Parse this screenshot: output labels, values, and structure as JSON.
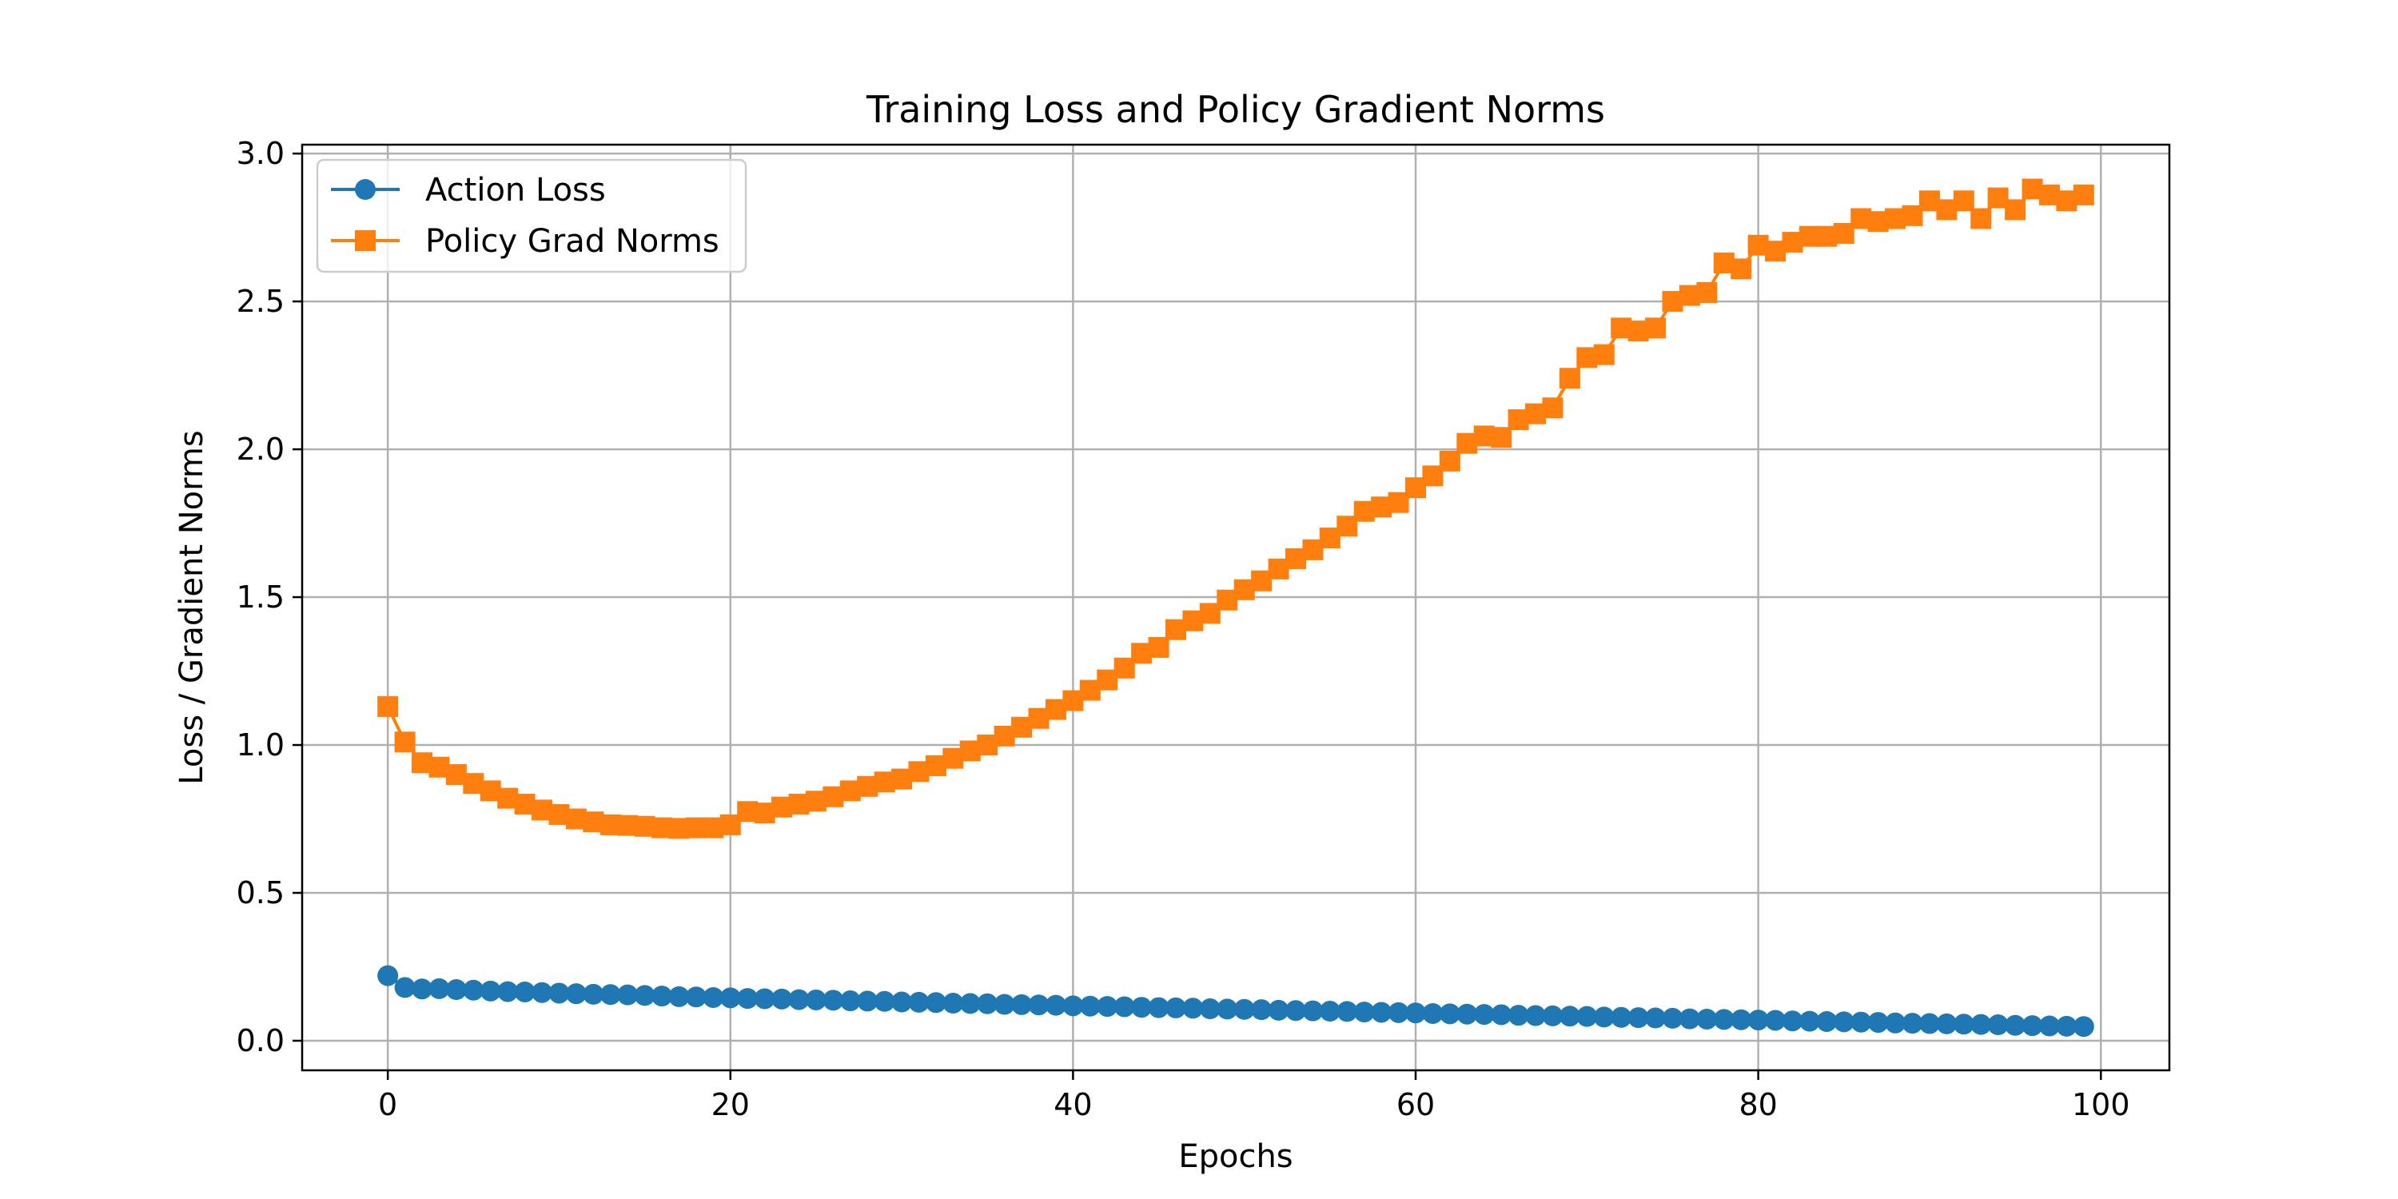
{
  "chart_data": {
    "type": "line",
    "title": "Training Loss and Policy Gradient Norms",
    "xlabel": "Epochs",
    "ylabel": "Loss / Gradient Norms",
    "xlim": [
      -5,
      104
    ],
    "ylim": [
      -0.1,
      3.03
    ],
    "xticks": [
      0,
      20,
      40,
      60,
      80,
      100
    ],
    "yticks": [
      0.0,
      0.5,
      1.0,
      1.5,
      2.0,
      2.5,
      3.0
    ],
    "xtick_labels": [
      "0",
      "20",
      "40",
      "60",
      "80",
      "100"
    ],
    "ytick_labels": [
      "0.0",
      "0.5",
      "1.0",
      "1.5",
      "2.0",
      "2.5",
      "3.0"
    ],
    "grid": true,
    "legend_position": "top-left",
    "x": [
      0,
      1,
      2,
      3,
      4,
      5,
      6,
      7,
      8,
      9,
      10,
      11,
      12,
      13,
      14,
      15,
      16,
      17,
      18,
      19,
      20,
      21,
      22,
      23,
      24,
      25,
      26,
      27,
      28,
      29,
      30,
      31,
      32,
      33,
      34,
      35,
      36,
      37,
      38,
      39,
      40,
      41,
      42,
      43,
      44,
      45,
      46,
      47,
      48,
      49,
      50,
      51,
      52,
      53,
      54,
      55,
      56,
      57,
      58,
      59,
      60,
      61,
      62,
      63,
      64,
      65,
      66,
      67,
      68,
      69,
      70,
      71,
      72,
      73,
      74,
      75,
      76,
      77,
      78,
      79,
      80,
      81,
      82,
      83,
      84,
      85,
      86,
      87,
      88,
      89,
      90,
      91,
      92,
      93,
      94,
      95,
      96,
      97,
      98,
      99
    ],
    "series": [
      {
        "name": "Action Loss",
        "color": "#1f77b4",
        "marker": "circle",
        "values": [
          0.22,
          0.18,
          0.175,
          0.176,
          0.173,
          0.171,
          0.168,
          0.166,
          0.165,
          0.163,
          0.161,
          0.159,
          0.157,
          0.156,
          0.155,
          0.153,
          0.151,
          0.149,
          0.148,
          0.146,
          0.145,
          0.143,
          0.142,
          0.141,
          0.139,
          0.138,
          0.137,
          0.135,
          0.134,
          0.133,
          0.131,
          0.13,
          0.129,
          0.127,
          0.126,
          0.125,
          0.123,
          0.122,
          0.121,
          0.12,
          0.118,
          0.117,
          0.116,
          0.115,
          0.113,
          0.112,
          0.111,
          0.11,
          0.108,
          0.107,
          0.106,
          0.105,
          0.103,
          0.102,
          0.101,
          0.1,
          0.099,
          0.097,
          0.096,
          0.095,
          0.094,
          0.092,
          0.091,
          0.09,
          0.089,
          0.088,
          0.086,
          0.085,
          0.084,
          0.083,
          0.082,
          0.08,
          0.079,
          0.078,
          0.077,
          0.076,
          0.074,
          0.073,
          0.072,
          0.071,
          0.07,
          0.069,
          0.067,
          0.066,
          0.065,
          0.064,
          0.063,
          0.062,
          0.06,
          0.059,
          0.058,
          0.057,
          0.056,
          0.055,
          0.054,
          0.052,
          0.051,
          0.05,
          0.049,
          0.048
        ]
      },
      {
        "name": "Policy Grad Norms",
        "color": "#ff7f0e",
        "marker": "square",
        "values": [
          1.13,
          1.01,
          0.94,
          0.925,
          0.9,
          0.87,
          0.845,
          0.82,
          0.8,
          0.78,
          0.765,
          0.75,
          0.74,
          0.73,
          0.728,
          0.725,
          0.72,
          0.718,
          0.72,
          0.72,
          0.73,
          0.775,
          0.77,
          0.79,
          0.8,
          0.81,
          0.825,
          0.845,
          0.86,
          0.875,
          0.885,
          0.91,
          0.93,
          0.955,
          0.98,
          1.0,
          1.03,
          1.06,
          1.09,
          1.12,
          1.15,
          1.185,
          1.22,
          1.26,
          1.31,
          1.33,
          1.39,
          1.42,
          1.445,
          1.49,
          1.525,
          1.555,
          1.595,
          1.63,
          1.66,
          1.7,
          1.74,
          1.79,
          1.805,
          1.82,
          1.87,
          1.91,
          1.96,
          2.02,
          2.045,
          2.04,
          2.1,
          2.12,
          2.14,
          2.24,
          2.31,
          2.32,
          2.41,
          2.4,
          2.41,
          2.5,
          2.52,
          2.53,
          2.63,
          2.61,
          2.69,
          2.67,
          2.7,
          2.72,
          2.72,
          2.73,
          2.78,
          2.77,
          2.78,
          2.79,
          2.84,
          2.81,
          2.84,
          2.78,
          2.85,
          2.81,
          2.88,
          2.86,
          2.84,
          2.86
        ]
      }
    ]
  }
}
